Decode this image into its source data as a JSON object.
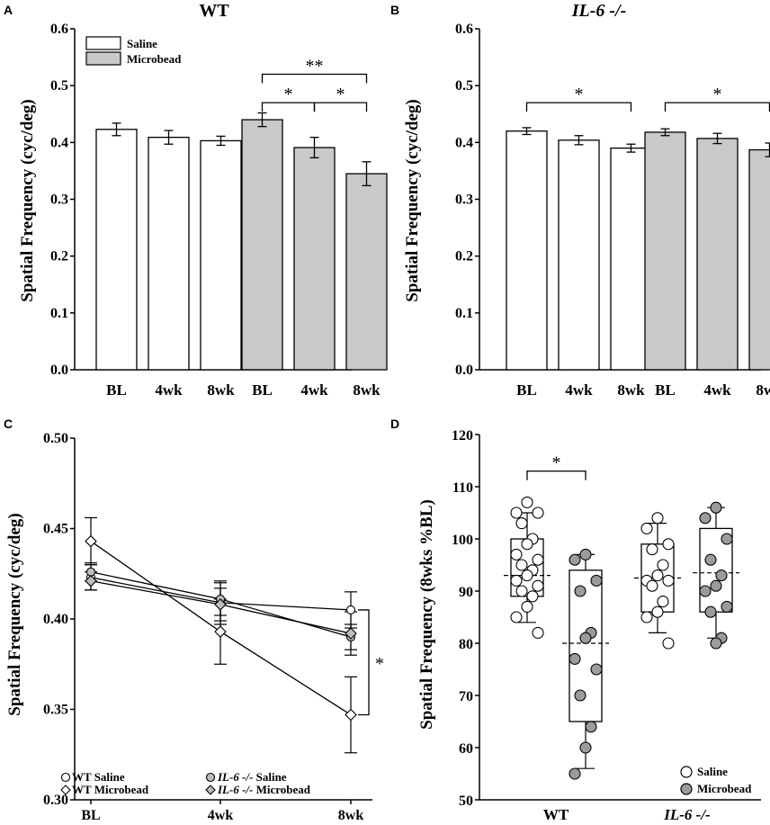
{
  "colors": {
    "saline": "#ffffff",
    "microbead": "#c9c9c9",
    "stroke": "#000000"
  },
  "panels": {
    "A": {
      "letter": "A"
    },
    "B": {
      "letter": "B"
    },
    "C": {
      "letter": "C"
    },
    "D": {
      "letter": "D"
    }
  },
  "chart_data": [
    {
      "id": "A",
      "type": "bar",
      "title": "WT",
      "ylabel": "Spatial Frequency (cyc/deg)",
      "ylim": [
        0,
        0.6
      ],
      "yticks": [
        "0.0",
        "0.1",
        "0.2",
        "0.3",
        "0.4",
        "0.5",
        "0.6"
      ],
      "categories": [
        "BL",
        "4wk",
        "8wk"
      ],
      "series": [
        {
          "name": "Saline",
          "values": [
            0.423,
            0.409,
            0.403
          ],
          "errors": [
            0.011,
            0.012,
            0.008
          ]
        },
        {
          "name": "Microbead",
          "values": [
            0.44,
            0.391,
            0.345
          ],
          "errors": [
            0.012,
            0.018,
            0.021
          ]
        }
      ],
      "legend": [
        "Saline",
        "Microbead"
      ],
      "significance": [
        {
          "series": 1,
          "from": 0,
          "to": 2,
          "label": "**",
          "y": 0.52
        },
        {
          "series": 1,
          "from": 0,
          "to": 1,
          "label": "*",
          "y": 0.47
        },
        {
          "series": 1,
          "from": 1,
          "to": 2,
          "label": "*",
          "y": 0.47
        }
      ]
    },
    {
      "id": "B",
      "type": "bar",
      "title": "IL-6 -/-",
      "ylabel": "Spatial Frequency (cyc/deg)",
      "ylim": [
        0,
        0.6
      ],
      "yticks": [
        "0.0",
        "0.1",
        "0.2",
        "0.3",
        "0.4",
        "0.5",
        "0.6"
      ],
      "categories": [
        "BL",
        "4wk",
        "8wk"
      ],
      "series": [
        {
          "name": "Saline",
          "values": [
            0.42,
            0.404,
            0.39
          ],
          "errors": [
            0.006,
            0.008,
            0.007
          ]
        },
        {
          "name": "Microbead",
          "values": [
            0.418,
            0.407,
            0.387
          ],
          "errors": [
            0.006,
            0.009,
            0.012
          ]
        }
      ],
      "significance": [
        {
          "series": 0,
          "from": 0,
          "to": 2,
          "label": "*",
          "y": 0.47
        },
        {
          "series": 1,
          "from": 0,
          "to": 2,
          "label": "*",
          "y": 0.47
        }
      ]
    },
    {
      "id": "C",
      "type": "line",
      "ylabel": "Spatial Frequency (cyc/deg)",
      "ylim": [
        0.3,
        0.5
      ],
      "yticks": [
        "0.30",
        "0.35",
        "0.40",
        "0.45",
        "0.50"
      ],
      "categories": [
        "BL",
        "4wk",
        "8wk"
      ],
      "series": [
        {
          "name": "WT Saline",
          "marker": "circle",
          "fill": "white",
          "values": [
            0.423,
            0.409,
            0.405
          ],
          "errors": [
            0.007,
            0.012,
            0.01
          ]
        },
        {
          "name": "WT Microbead",
          "marker": "diamond",
          "fill": "white",
          "values": [
            0.443,
            0.393,
            0.347
          ],
          "errors": [
            0.013,
            0.018,
            0.021
          ]
        },
        {
          "name": "IL-6 -/- Saline",
          "marker": "circle",
          "fill": "grey",
          "values": [
            0.426,
            0.411,
            0.39
          ],
          "errors": [
            0.005,
            0.009,
            0.007
          ]
        },
        {
          "name": "IL-6 -/- Microbead",
          "marker": "diamond",
          "fill": "grey",
          "values": [
            0.421,
            0.408,
            0.392
          ],
          "errors": [
            0.005,
            0.009,
            0.012
          ]
        }
      ],
      "legend": [
        {
          "strain": "WT",
          "group": "Saline"
        },
        {
          "strain": "WT",
          "group": "Microbead"
        },
        {
          "strain": "IL-6 -/-",
          "group": "Saline"
        },
        {
          "strain": "IL-6 -/-",
          "group": "Microbead"
        }
      ],
      "significance_label": "*"
    },
    {
      "id": "D",
      "type": "box",
      "ylabel": "Spatial Frequency (8wks %BL)",
      "ylim": [
        50,
        120
      ],
      "yticks": [
        "50",
        "60",
        "70",
        "80",
        "90",
        "100",
        "110",
        "120"
      ],
      "categories": [
        "WT",
        "IL-6 -/-"
      ],
      "boxes": [
        {
          "group": "Saline",
          "strain": "WT",
          "whisker_low": 84,
          "q1": 89,
          "q3": 100,
          "whisker_high": 105,
          "mean": 93,
          "points": [
            107,
            105,
            105,
            103,
            100,
            99,
            97,
            96,
            95,
            94,
            93,
            92,
            91,
            90,
            89,
            87,
            85,
            82
          ]
        },
        {
          "group": "Microbead",
          "strain": "WT",
          "whisker_low": 56,
          "q1": 65,
          "q3": 94,
          "whisker_high": 97,
          "mean": 80,
          "points": [
            97,
            96,
            92,
            90,
            82,
            81,
            77,
            75,
            70,
            64,
            60,
            55
          ]
        },
        {
          "group": "Saline",
          "strain": "IL-6 -/-",
          "whisker_low": 82,
          "q1": 86,
          "q3": 99,
          "whisker_high": 103,
          "mean": 92.5,
          "points": [
            104,
            102,
            99,
            98,
            95,
            93,
            92,
            92,
            91,
            88,
            86,
            85,
            80
          ]
        },
        {
          "group": "Microbead",
          "strain": "IL-6 -/-",
          "whisker_low": 81,
          "q1": 86,
          "q3": 102,
          "whisker_high": 106,
          "mean": 93.5,
          "points": [
            106,
            104,
            100,
            96,
            93,
            91,
            90,
            87,
            86,
            81,
            80
          ]
        }
      ],
      "legend": [
        "Saline",
        "Microbead"
      ],
      "significance": [
        {
          "from": 0,
          "to": 1,
          "label": "*",
          "y": 113
        }
      ]
    }
  ]
}
